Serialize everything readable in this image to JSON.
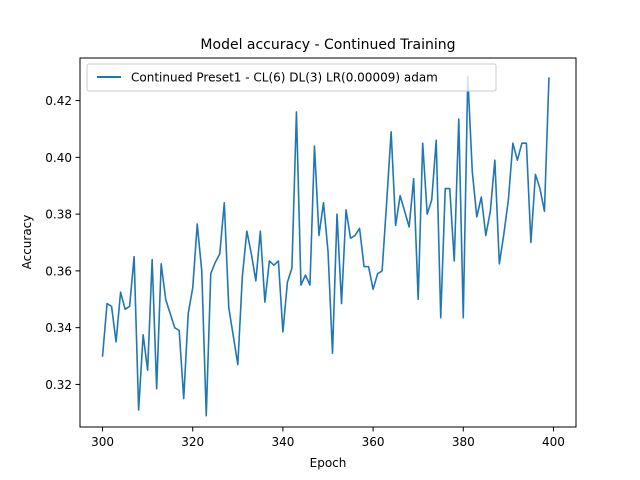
{
  "chart_data": {
    "type": "line",
    "title": "Model accuracy - Continued Training",
    "xlabel": "Epoch",
    "ylabel": "Accuracy",
    "xlim": [
      295,
      405
    ],
    "ylim": [
      0.305,
      0.435
    ],
    "xticks": [
      300,
      320,
      340,
      360,
      380,
      400
    ],
    "yticks": [
      0.32,
      0.34,
      0.36,
      0.38,
      0.4,
      0.42
    ],
    "xtick_labels": [
      "300",
      "320",
      "340",
      "360",
      "380",
      "400"
    ],
    "ytick_labels": [
      "0.32",
      "0.34",
      "0.36",
      "0.38",
      "0.40",
      "0.42"
    ],
    "grid": false,
    "legend_position": "top-left",
    "series": [
      {
        "name": "Continued Preset1 - CL(6) DL(3) LR(0.00009) adam",
        "color": "#1f77b4",
        "x": [
          300,
          301,
          302,
          303,
          304,
          305,
          306,
          307,
          308,
          309,
          310,
          311,
          312,
          313,
          314,
          315,
          316,
          317,
          318,
          319,
          320,
          321,
          322,
          323,
          324,
          325,
          326,
          327,
          328,
          329,
          330,
          331,
          332,
          333,
          334,
          335,
          336,
          337,
          338,
          339,
          340,
          341,
          342,
          343,
          344,
          345,
          346,
          347,
          348,
          349,
          350,
          351,
          352,
          353,
          354,
          355,
          356,
          357,
          358,
          359,
          360,
          361,
          362,
          363,
          364,
          365,
          366,
          367,
          368,
          369,
          370,
          371,
          372,
          373,
          374,
          375,
          376,
          377,
          378,
          379,
          380,
          381,
          382,
          383,
          384,
          385,
          386,
          387,
          388,
          389,
          390,
          391,
          392,
          393,
          394,
          395,
          396,
          397,
          398,
          399
        ],
        "y": [
          0.33,
          0.3485,
          0.3475,
          0.335,
          0.3525,
          0.3465,
          0.3475,
          0.365,
          0.311,
          0.3375,
          0.325,
          0.364,
          0.3185,
          0.3625,
          0.35,
          0.345,
          0.34,
          0.339,
          0.315,
          0.345,
          0.354,
          0.3765,
          0.36,
          0.309,
          0.359,
          0.363,
          0.366,
          0.384,
          0.347,
          0.337,
          0.327,
          0.358,
          0.374,
          0.366,
          0.3565,
          0.374,
          0.349,
          0.3635,
          0.362,
          0.3635,
          0.3385,
          0.356,
          0.361,
          0.416,
          0.355,
          0.3585,
          0.355,
          0.404,
          0.3725,
          0.384,
          0.367,
          0.331,
          0.38,
          0.3485,
          0.3815,
          0.3715,
          0.3725,
          0.375,
          0.3615,
          0.3615,
          0.3535,
          0.359,
          0.36,
          0.384,
          0.409,
          0.376,
          0.3865,
          0.381,
          0.3755,
          0.3925,
          0.35,
          0.405,
          0.38,
          0.385,
          0.406,
          0.3435,
          0.389,
          0.389,
          0.3635,
          0.4135,
          0.3435,
          0.4285,
          0.395,
          0.379,
          0.386,
          0.3725,
          0.381,
          0.399,
          0.3625,
          0.373,
          0.385,
          0.405,
          0.399,
          0.405,
          0.405,
          0.37,
          0.394,
          0.389,
          0.381,
          0.428
        ]
      }
    ]
  }
}
